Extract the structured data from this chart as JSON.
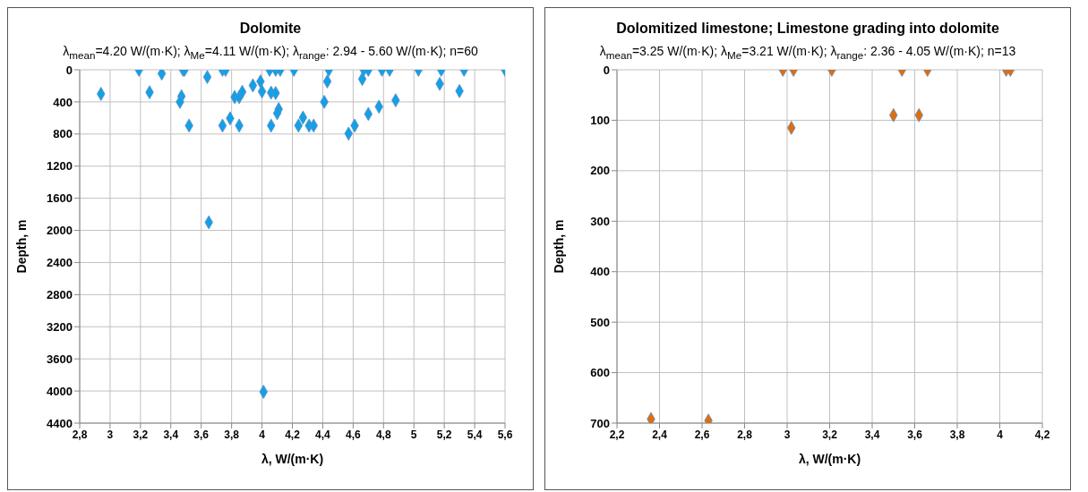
{
  "chart_data": [
    {
      "type": "scatter",
      "title": "Dolomite",
      "subtitle": "λ$_{mean}$=4.20 W/(m·K); λ$_{Me}$=4.11 W/(m·K);  λ$_{range}$: 2.94 - 5.60 W/(m·K);  n=60",
      "xlabel": "λ,  W/(m·K)",
      "ylabel": "Depth, m",
      "series": [
        {
          "color": "#14a0e6",
          "x": [
            2.94,
            3.19,
            3.34,
            3.26,
            3.48,
            3.49,
            3.47,
            3.46,
            3.52,
            3.64,
            3.74,
            3.76,
            3.74,
            3.79,
            3.82,
            3.85,
            3.87,
            3.85,
            3.94,
            3.99,
            4.0,
            4.05,
            4.06,
            4.06,
            4.09,
            4.09,
            4.12,
            4.11,
            4.1,
            4.21,
            4.24,
            4.27,
            4.31,
            4.34,
            4.44,
            4.43,
            4.41,
            4.67,
            4.7,
            4.66,
            4.61,
            4.57,
            4.7,
            4.77,
            4.88,
            4.79,
            4.84,
            5.03,
            5.18,
            5.17,
            5.33,
            5.3,
            5.6,
            3.65,
            4.01
          ],
          "values": [
            300,
            0,
            47,
            280,
            0,
            0,
            330,
            400,
            695,
            90,
            0,
            0,
            695,
            605,
            340,
            340,
            275,
            695,
            195,
            145,
            270,
            0,
            695,
            285,
            290,
            0,
            0,
            490,
            540,
            0,
            695,
            595,
            695,
            695,
            0,
            145,
            400,
            0,
            0,
            115,
            695,
            795,
            550,
            460,
            380,
            0,
            0,
            0,
            0,
            175,
            0,
            265,
            0,
            1900,
            4010
          ]
        }
      ],
      "xlim": [
        2.8,
        5.6
      ],
      "xticks": [
        {
          "value": 2.8,
          "label": "2,8"
        },
        3,
        {
          "value": 3.2,
          "label": "3,2"
        },
        {
          "value": 3.4,
          "label": "3,4"
        },
        {
          "value": 3.6,
          "label": "3,6"
        },
        {
          "value": 3.8,
          "label": "3,8"
        },
        4,
        {
          "value": 4.2,
          "label": "4,2"
        },
        {
          "value": 4.4,
          "label": "4,4"
        },
        {
          "value": 4.6,
          "label": "4,6"
        },
        {
          "value": 4.8,
          "label": "4,8"
        },
        5,
        {
          "value": 5.2,
          "label": "5,2"
        },
        {
          "value": 5.4,
          "label": "5,4"
        },
        {
          "value": 5.6,
          "label": "5,6"
        }
      ],
      "ylim": [
        4400,
        0
      ],
      "yticks": [
        0,
        400,
        800,
        1200,
        1600,
        2000,
        2400,
        2800,
        3200,
        3600,
        4000,
        4400
      ],
      "grid": true,
      "marker": "diamond"
    },
    {
      "type": "scatter",
      "title": "Dolomitized limestone; Limestone grading into dolomite",
      "subtitle": "λ$_{mean}$=3.25 W/(m·K); λ$_{Me}$=3.21 W/(m·K);  λ$_{range}$: 2.36 - 4.05 W/(m·K); n=13",
      "xlabel": "λ,  W/(m·K)",
      "ylabel": "Depth, m",
      "series": [
        {
          "color": "#e36c09",
          "x": [
            2.98,
            3.03,
            3.21,
            3.54,
            3.66,
            4.03,
            4.05,
            3.5,
            3.62,
            3.02,
            2.36,
            2.63
          ],
          "values": [
            0,
            0,
            0,
            0,
            0,
            0,
            0,
            90,
            90,
            115,
            692,
            695
          ]
        }
      ],
      "xlim": [
        2.2,
        4.2
      ],
      "xticks": [
        {
          "value": 2.2,
          "label": "2,2"
        },
        {
          "value": 2.4,
          "label": "2,4"
        },
        {
          "value": 2.6,
          "label": "2,6"
        },
        {
          "value": 2.8,
          "label": "2,8"
        },
        3,
        {
          "value": 3.2,
          "label": "3,2"
        },
        {
          "value": 3.4,
          "label": "3,4"
        },
        {
          "value": 3.6,
          "label": "3,6"
        },
        {
          "value": 3.8,
          "label": "3,8"
        },
        4,
        {
          "value": 4.2,
          "label": "4,2"
        }
      ],
      "ylim": [
        700,
        0
      ],
      "yticks": [
        0,
        100,
        200,
        300,
        400,
        500,
        600,
        700
      ],
      "grid": true,
      "marker": "diamond"
    }
  ]
}
